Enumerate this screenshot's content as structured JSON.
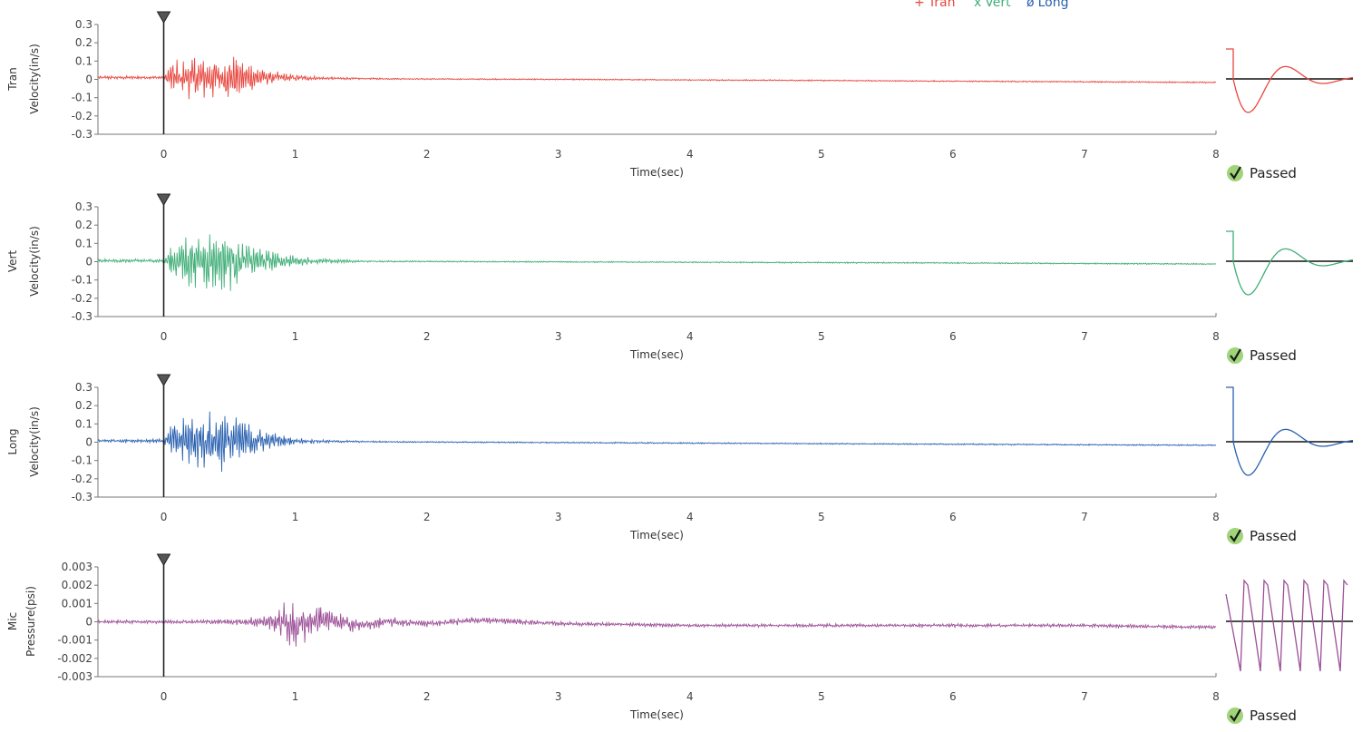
{
  "legend": [
    {
      "name": "Tran",
      "marker": "+",
      "color": "#e8473f"
    },
    {
      "name": "Vert",
      "marker": "x",
      "color": "#3fae77"
    },
    {
      "name": "Long",
      "marker": "ø",
      "color": "#2860b0"
    }
  ],
  "chart_data": [
    {
      "type": "line",
      "channel": "Tran",
      "ylabel": "Velocity(in/s)",
      "xlabel": "Time(sec)",
      "xlim": [
        -0.5,
        8
      ],
      "ylim": [
        -0.3,
        0.3
      ],
      "xticks": [
        "0",
        "1",
        "2",
        "3",
        "4",
        "5",
        "6",
        "7",
        "8"
      ],
      "yticks": [
        "0.3",
        "0.2",
        "0.1",
        "0",
        "-0.1",
        "-0.2",
        "-0.3"
      ],
      "trigger_time": 0,
      "color": "#e8473f",
      "series": [
        {
          "values_x": [
            -0.5,
            0,
            0.05,
            0.1,
            0.2,
            0.3,
            0.4,
            0.5,
            0.6,
            0.7,
            0.8,
            1.0,
            1.2,
            1.5,
            2,
            3,
            4,
            5,
            6,
            7,
            8
          ],
          "envelope": [
            0.01,
            0.01,
            0.08,
            0.11,
            0.12,
            0.13,
            0.12,
            0.13,
            0.1,
            0.07,
            0.05,
            0.02,
            0.01,
            0.005,
            0.004,
            0.004,
            0.004,
            0.004,
            0.004,
            0.004,
            0.004
          ],
          "baseline": [
            0.01,
            0.01,
            0.01,
            0.01,
            0.01,
            0.01,
            0.01,
            0.01,
            0.01,
            0.01,
            0.01,
            0.008,
            0.006,
            0.004,
            0.002,
            0,
            -0.003,
            -0.006,
            -0.01,
            -0.013,
            -0.017
          ]
        }
      ],
      "status": "Passed"
    },
    {
      "type": "line",
      "channel": "Vert",
      "ylabel": "Velocity(in/s)",
      "xlabel": "Time(sec)",
      "xlim": [
        -0.5,
        8
      ],
      "ylim": [
        -0.3,
        0.3
      ],
      "xticks": [
        "0",
        "1",
        "2",
        "3",
        "4",
        "5",
        "6",
        "7",
        "8"
      ],
      "yticks": [
        "0.3",
        "0.2",
        "0.1",
        "0",
        "-0.1",
        "-0.2",
        "-0.3"
      ],
      "trigger_time": 0,
      "color": "#3fae77",
      "series": [
        {
          "values_x": [
            -0.5,
            0,
            0.05,
            0.1,
            0.2,
            0.3,
            0.4,
            0.5,
            0.6,
            0.7,
            0.8,
            1.0,
            1.2,
            1.5,
            2,
            3,
            4,
            5,
            6,
            7,
            8
          ],
          "envelope": [
            0.01,
            0.01,
            0.09,
            0.13,
            0.16,
            0.17,
            0.16,
            0.17,
            0.13,
            0.09,
            0.06,
            0.03,
            0.015,
            0.006,
            0.004,
            0.004,
            0.004,
            0.004,
            0.004,
            0.004,
            0.004
          ],
          "baseline": [
            0.005,
            0.005,
            0.005,
            0.005,
            0.005,
            0.005,
            0.005,
            0.005,
            0.005,
            0.005,
            0.005,
            0.004,
            0.003,
            0.002,
            0.001,
            -0.001,
            -0.003,
            -0.005,
            -0.007,
            -0.01,
            -0.013
          ]
        }
      ],
      "status": "Passed"
    },
    {
      "type": "line",
      "channel": "Long",
      "ylabel": "Velocity(in/s)",
      "xlabel": "Time(sec)",
      "xlim": [
        -0.5,
        8
      ],
      "ylim": [
        -0.3,
        0.3
      ],
      "xticks": [
        "0",
        "1",
        "2",
        "3",
        "4",
        "5",
        "6",
        "7",
        "8"
      ],
      "yticks": [
        "0.3",
        "0.2",
        "0.1",
        "0",
        "-0.1",
        "-0.2",
        "-0.3"
      ],
      "trigger_time": 0,
      "color": "#2860b0",
      "series": [
        {
          "values_x": [
            -0.5,
            0,
            0.05,
            0.1,
            0.2,
            0.3,
            0.4,
            0.5,
            0.6,
            0.7,
            0.8,
            1.0,
            1.2,
            1.5,
            2,
            3,
            4,
            5,
            6,
            7,
            8
          ],
          "envelope": [
            0.01,
            0.01,
            0.08,
            0.12,
            0.15,
            0.16,
            0.18,
            0.16,
            0.12,
            0.08,
            0.05,
            0.02,
            0.01,
            0.005,
            0.004,
            0.004,
            0.004,
            0.004,
            0.004,
            0.004,
            0.004
          ],
          "baseline": [
            0.008,
            0.008,
            0.008,
            0.008,
            0.008,
            0.008,
            0.008,
            0.008,
            0.008,
            0.008,
            0.008,
            0.007,
            0.005,
            0.003,
            0.001,
            -0.002,
            -0.005,
            -0.008,
            -0.011,
            -0.014,
            -0.017
          ]
        }
      ],
      "status": "Passed"
    },
    {
      "type": "line",
      "channel": "Mic",
      "ylabel": "Pressure(psi)",
      "xlabel": "Time(sec)",
      "xlim": [
        -0.5,
        8
      ],
      "ylim": [
        -0.003,
        0.003
      ],
      "xticks": [
        "0",
        "1",
        "2",
        "3",
        "4",
        "5",
        "6",
        "7",
        "8"
      ],
      "yticks": [
        "0.003",
        "0.002",
        "0.001",
        "0",
        "-0.001",
        "-0.002",
        "-0.003"
      ],
      "trigger_time": 0,
      "color": "#9b4f96",
      "series": [
        {
          "values_x": [
            -0.5,
            0,
            0.5,
            0.8,
            0.9,
            1.0,
            1.1,
            1.2,
            1.3,
            1.5,
            1.7,
            2.0,
            2.4,
            3,
            4,
            5,
            6,
            7,
            8
          ],
          "envelope": [
            0.0001,
            0.0001,
            0.00015,
            0.0004,
            0.0012,
            0.0014,
            0.0011,
            0.0009,
            0.0006,
            0.00035,
            0.0003,
            0.0002,
            0.0002,
            0.00012,
            0.0001,
            0.0001,
            0.0001,
            0.0001,
            0.0001
          ],
          "baseline": [
            0,
            0,
            0,
            0,
            0,
            -0.0003,
            0,
            0.0002,
            0,
            -0.0002,
            0,
            -0.0001,
            0.0001,
            -0.0001,
            -0.0002,
            -0.0002,
            -0.0002,
            -0.0002,
            -0.0003
          ]
        }
      ],
      "status": "Passed"
    }
  ]
}
